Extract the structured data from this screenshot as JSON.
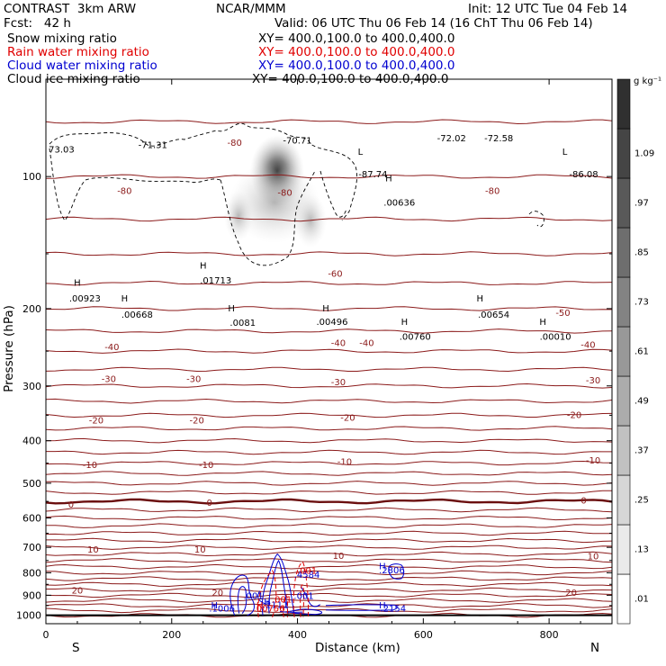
{
  "header": {
    "left1": "CONTRAST  3km ARW",
    "center1": "NCAR/MMM",
    "right1": "Init: 12 UTC Tue 04 Feb 14",
    "left2": "Fcst:   42 h",
    "right2": "Valid: 06 UTC Thu 06 Feb 14 (16 ChT Thu 06 Feb 14)",
    "fields": [
      {
        "name": "Snow mixing ratio",
        "xy": "XY= 400.0,100.0 to 400.0,400.0",
        "color": "#000000"
      },
      {
        "name": "Rain water mixing ratio",
        "xy": "XY= 400.0,100.0 to 400.0,400.0",
        "color": "#e00000"
      },
      {
        "name": "Cloud water mixing ratio",
        "xy": "XY= 400.0,100.0 to 400.0,400.0",
        "color": "#0000d0"
      },
      {
        "name": "Cloud ice mixing ratio",
        "xy": "XY= 400.0,100.0 to 400.0,400.0",
        "color": "#000000"
      }
    ]
  },
  "chart_data": {
    "type": "cross-section",
    "xlabel": "Distance (km)",
    "ylabel": "Pressure (hPa)",
    "xlim": [
      0,
      900
    ],
    "ylim": [
      1045,
      60
    ],
    "y_scale": "log",
    "xticks": [
      0,
      200,
      400,
      600,
      800
    ],
    "yticks": [
      100,
      200,
      300,
      400,
      500,
      600,
      700,
      800,
      900,
      1000
    ],
    "x_end_labels": {
      "left": "S",
      "right": "N"
    },
    "colorbar": {
      "unit": "g kg⁻¹",
      "levels": [
        ".01",
        ".13",
        ".25",
        ".37",
        ".49",
        ".61",
        ".73",
        ".85",
        ".97",
        "1.09"
      ]
    },
    "temperature_colour": "#8b1a1a",
    "temperature_labels": [
      {
        "text": "0",
        "x": 40,
        "p": 560
      },
      {
        "text": "0",
        "x": 260,
        "p": 555
      },
      {
        "text": "0",
        "x": 855,
        "p": 548
      },
      {
        "text": "-10",
        "x": 70,
        "p": 455
      },
      {
        "text": "-10",
        "x": 255,
        "p": 455
      },
      {
        "text": "-10",
        "x": 475,
        "p": 448
      },
      {
        "text": "-10",
        "x": 870,
        "p": 445
      },
      {
        "text": "-20",
        "x": 80,
        "p": 360
      },
      {
        "text": "-20",
        "x": 240,
        "p": 360
      },
      {
        "text": "-20",
        "x": 480,
        "p": 355
      },
      {
        "text": "-20",
        "x": 840,
        "p": 350
      },
      {
        "text": "-30",
        "x": 100,
        "p": 290
      },
      {
        "text": "-30",
        "x": 235,
        "p": 290
      },
      {
        "text": "-30",
        "x": 465,
        "p": 295
      },
      {
        "text": "-30",
        "x": 870,
        "p": 292
      },
      {
        "text": "-40",
        "x": 105,
        "p": 245
      },
      {
        "text": "-40",
        "x": 465,
        "p": 240
      },
      {
        "text": "-40",
        "x": 510,
        "p": 240
      },
      {
        "text": "-40",
        "x": 862,
        "p": 242
      },
      {
        "text": "-50",
        "x": 822,
        "p": 205
      },
      {
        "text": "-60",
        "x": 460,
        "p": 167
      },
      {
        "text": "-80",
        "x": 125,
        "p": 108
      },
      {
        "text": "-80",
        "x": 300,
        "p": 84
      },
      {
        "text": "-80",
        "x": 380,
        "p": 109
      },
      {
        "text": "-80",
        "x": 710,
        "p": 108
      },
      {
        "text": "10",
        "x": 75,
        "p": 710
      },
      {
        "text": "10",
        "x": 245,
        "p": 710
      },
      {
        "text": "10",
        "x": 465,
        "p": 733
      },
      {
        "text": "10",
        "x": 870,
        "p": 735
      },
      {
        "text": "20",
        "x": 50,
        "p": 880
      },
      {
        "text": "20",
        "x": 273,
        "p": 890
      },
      {
        "text": "20",
        "x": 835,
        "p": 890
      }
    ],
    "extrema_labels": [
      {
        "text": "73.03",
        "x": 25,
        "p": 87
      },
      {
        "text": "-71.31",
        "x": 170,
        "p": 85
      },
      {
        "text": "-70.71",
        "x": 400,
        "p": 83
      },
      {
        "text": "-72.02",
        "x": 645,
        "p": 82
      },
      {
        "text": "-72.58",
        "x": 720,
        "p": 82
      },
      {
        "text": "L",
        "x": 500,
        "p": 88
      },
      {
        "text": "L",
        "x": 825,
        "p": 88
      },
      {
        "text": "-87.74",
        "x": 520,
        "p": 99
      },
      {
        "text": "-86.08",
        "x": 855,
        "p": 99
      },
      {
        "text": ".00636",
        "x": 562,
        "p": 115
      },
      {
        "text": "H",
        "x": 545,
        "p": 101
      },
      {
        "text": "H",
        "x": 50,
        "p": 175
      },
      {
        "text": ".00923",
        "x": 62,
        "p": 190
      },
      {
        "text": "H",
        "x": 125,
        "p": 190
      },
      {
        "text": ".00668",
        "x": 145,
        "p": 207
      },
      {
        "text": "H",
        "x": 250,
        "p": 160
      },
      {
        "text": ".01713",
        "x": 270,
        "p": 173
      },
      {
        "text": "H",
        "x": 295,
        "p": 200
      },
      {
        "text": ".0081",
        "x": 313,
        "p": 216
      },
      {
        "text": "H",
        "x": 445,
        "p": 200
      },
      {
        "text": ".00496",
        "x": 455,
        "p": 215
      },
      {
        "text": "H",
        "x": 570,
        "p": 215
      },
      {
        "text": ".00760",
        "x": 587,
        "p": 232
      },
      {
        "text": "H",
        "x": 690,
        "p": 190
      },
      {
        "text": ".00654",
        "x": 712,
        "p": 207
      },
      {
        "text": "H",
        "x": 790,
        "p": 215
      },
      {
        "text": ".00010",
        "x": 810,
        "p": 232
      }
    ],
    "cloud_water_labels": [
      {
        "text": "H",
        "x": 535,
        "p": 775
      },
      {
        "text": ".2806",
        "x": 550,
        "p": 790
      },
      {
        "text": ".4584",
        "x": 415,
        "p": 810
      },
      {
        "text": ".001",
        "x": 330,
        "p": 905
      },
      {
        "text": ".001",
        "x": 410,
        "p": 905
      },
      {
        "text": "H",
        "x": 268,
        "p": 950
      },
      {
        "text": ".1006",
        "x": 280,
        "p": 967
      },
      {
        "text": "H",
        "x": 352,
        "p": 932
      },
      {
        "text": ".2111",
        "x": 365,
        "p": 948
      },
      {
        "text": "H",
        "x": 535,
        "p": 950
      },
      {
        "text": ".2154",
        "x": 552,
        "p": 967
      }
    ],
    "rain_labels": [
      {
        "text": ".001",
        "x": 415,
        "p": 793
      },
      {
        "text": ".001",
        "x": 375,
        "p": 923
      },
      {
        "text": "H",
        "x": 340,
        "p": 950
      },
      {
        "text": ".00756",
        "x": 355,
        "p": 967
      }
    ]
  }
}
